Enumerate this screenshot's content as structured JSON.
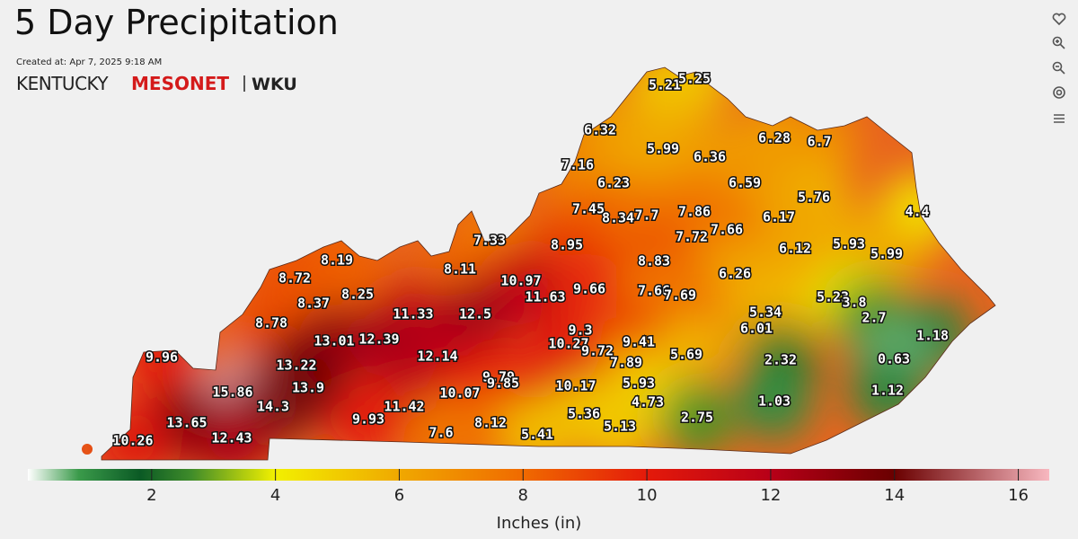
{
  "header": {
    "title": "5 Day Precipitation",
    "created": "Created at: Apr 7, 2025 9:18 AM",
    "brand": [
      "KENTUCKY",
      "MESONET",
      "WKU"
    ]
  },
  "map": {
    "stations": [
      5.21,
      5.25,
      6.32,
      5.99,
      6.28,
      6.7,
      6.36,
      7.16,
      6.23,
      6.59,
      5.76,
      7.45,
      8.34,
      7.7,
      7.86,
      6.17,
      4.4,
      7.72,
      7.66,
      7.33,
      8.95,
      6.12,
      5.93,
      5.99,
      8.19,
      8.11,
      8.83,
      8.72,
      10.97,
      6.26,
      8.25,
      8.37,
      11.63,
      9.66,
      7.66,
      7.69,
      5.23,
      3.8,
      11.33,
      12.5,
      5.34,
      2.7,
      8.78,
      9.3,
      6.01,
      13.01,
      12.39,
      10.27,
      9.72,
      9.41,
      1.18,
      9.96,
      12.14,
      5.69,
      13.22,
      7.89,
      2.32,
      0.63,
      9.79,
      9.85,
      10.17,
      5.93,
      15.86,
      13.9,
      10.07,
      1.12,
      14.3,
      4.73,
      1.03,
      11.42,
      9.93,
      5.36,
      2.75,
      13.65,
      8.12,
      5.13,
      7.6,
      5.41,
      10.26,
      12.43
    ]
  },
  "colorbar": {
    "lim": [
      0,
      16.5
    ],
    "ticks": [
      2,
      4,
      6,
      8,
      10,
      12,
      14,
      16
    ],
    "label": "Inches (in)"
  }
}
